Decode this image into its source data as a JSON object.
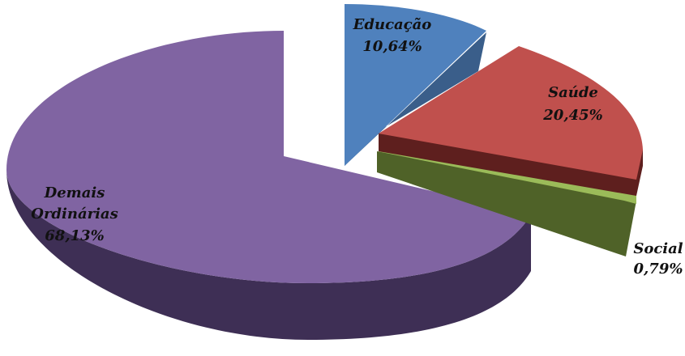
{
  "chart_data": {
    "type": "pie",
    "title": "",
    "style": "3d-exploded",
    "slices": [
      {
        "label": "Educação",
        "value_label": "10,64%",
        "value": 10.64,
        "color": "#4F81BD",
        "side_color": "#3A5E8A"
      },
      {
        "label": "Saúde",
        "value_label": "20,45%",
        "value": 20.45,
        "color": "#C0504D",
        "side_color": "#5E1F1E"
      },
      {
        "label": "Social",
        "value_label": "0,79%",
        "value": 0.79,
        "color": "#9BBB59",
        "side_color": "#4F6228"
      },
      {
        "label": "Demais",
        "label2": "Ordinárias",
        "value_label": "68,13%",
        "value": 68.13,
        "color": "#8064A2",
        "side_color": "#3E2F55"
      }
    ]
  }
}
